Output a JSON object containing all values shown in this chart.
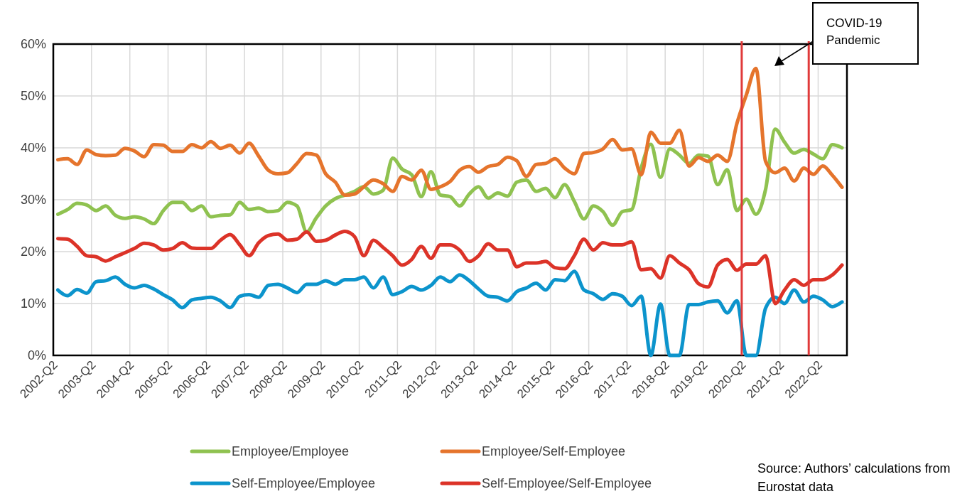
{
  "chart_data": {
    "type": "line",
    "x": [
      "2002-05-15",
      "2002-08-15",
      "2002-11-15",
      "2003-02-15",
      "2003-05-15",
      "2003-08-15",
      "2003-11-15",
      "2004-02-15",
      "2004-05-15",
      "2004-08-15",
      "2004-11-15",
      "2005-02-15",
      "2005-05-15",
      "2005-08-15",
      "2005-11-15",
      "2006-02-15",
      "2006-05-15",
      "2006-08-15",
      "2006-11-15",
      "2007-02-15",
      "2007-05-15",
      "2007-08-15",
      "2007-11-15",
      "2008-02-15",
      "2008-05-15",
      "2008-08-15",
      "2008-11-15",
      "2009-02-15",
      "2009-05-15",
      "2009-08-15",
      "2009-11-15",
      "2010-02-15",
      "2010-05-15",
      "2010-08-15",
      "2010-11-15",
      "2011-02-15",
      "2011-05-15",
      "2011-08-15",
      "2011-11-15",
      "2012-02-15",
      "2012-05-15",
      "2012-08-15",
      "2012-11-15",
      "2013-02-15",
      "2013-05-15",
      "2013-08-15",
      "2013-11-15",
      "2014-02-15",
      "2014-05-15",
      "2014-08-15",
      "2014-11-15",
      "2015-02-15",
      "2015-05-15",
      "2015-08-15",
      "2015-11-15",
      "2016-02-15",
      "2016-05-15",
      "2016-08-15",
      "2016-11-15",
      "2017-02-15",
      "2017-05-15",
      "2017-08-15",
      "2017-11-15",
      "2018-02-15",
      "2018-05-15",
      "2018-08-15",
      "2018-11-15",
      "2019-02-15",
      "2019-05-15",
      "2019-08-15",
      "2019-11-15",
      "2020-02-15",
      "2020-05-15",
      "2020-08-15",
      "2020-11-15",
      "2021-02-15",
      "2021-05-15",
      "2021-08-15",
      "2021-11-15",
      "2022-02-15",
      "2022-05-15",
      "2022-08-15",
      "2022-11-15"
    ],
    "xlim": [
      "2002-04-01",
      "2023-01-01"
    ],
    "xticks": [
      {
        "value": "2002-04-01",
        "label": "2002-Q2"
      },
      {
        "value": "2003-04-01",
        "label": "2003-Q2"
      },
      {
        "value": "2004-04-01",
        "label": "2004-Q2"
      },
      {
        "value": "2005-04-01",
        "label": "2005-Q2"
      },
      {
        "value": "2006-04-01",
        "label": "2006-Q2"
      },
      {
        "value": "2007-04-01",
        "label": "2007-Q2"
      },
      {
        "value": "2008-04-01",
        "label": "2008-Q2"
      },
      {
        "value": "2009-04-01",
        "label": "2009-Q2"
      },
      {
        "value": "2010-04-01",
        "label": "2010-Q2"
      },
      {
        "value": "2011-04-01",
        "label": "2011-Q2"
      },
      {
        "value": "2012-04-01",
        "label": "2012-Q2"
      },
      {
        "value": "2013-04-01",
        "label": "2013-Q2"
      },
      {
        "value": "2014-04-01",
        "label": "2014-Q2"
      },
      {
        "value": "2015-04-01",
        "label": "2015-Q2"
      },
      {
        "value": "2016-04-01",
        "label": "2016-Q2"
      },
      {
        "value": "2017-04-01",
        "label": "2017-Q2"
      },
      {
        "value": "2018-04-01",
        "label": "2018-Q2"
      },
      {
        "value": "2019-04-01",
        "label": "2019-Q2"
      },
      {
        "value": "2020-04-01",
        "label": "2020-Q2"
      },
      {
        "value": "2021-04-01",
        "label": "2021-Q2"
      },
      {
        "value": "2022-04-01",
        "label": "2022-Q2"
      }
    ],
    "ylim": [
      0,
      60
    ],
    "yticks": [
      {
        "value": 0,
        "label": "0%"
      },
      {
        "value": 10,
        "label": "10%"
      },
      {
        "value": 20,
        "label": "20%"
      },
      {
        "value": 30,
        "label": "30%"
      },
      {
        "value": 40,
        "label": "40%"
      },
      {
        "value": 50,
        "label": "50%"
      },
      {
        "value": 60,
        "label": "60%"
      }
    ],
    "grid": true,
    "legend": "bottom",
    "line_style": "solid",
    "ref_lines": [
      {
        "axis": "x",
        "value": "2020-04",
        "color": "#e03a3a"
      },
      {
        "axis": "x",
        "value": "2022-01",
        "color": "#e03a3a"
      }
    ],
    "series": [
      {
        "name": "Employee/Employee",
        "color": "#8fc250",
        "values": [
          27.2,
          28.1,
          29.3,
          29.0,
          27.9,
          28.8,
          27.0,
          26.4,
          26.7,
          26.3,
          25.4,
          27.9,
          29.5,
          29.5,
          27.9,
          28.8,
          26.7,
          27.0,
          27.1,
          29.5,
          28.1,
          28.4,
          27.7,
          27.9,
          29.5,
          28.8,
          23.8,
          26.5,
          28.8,
          30.2,
          30.9,
          31.6,
          32.5,
          31.1,
          31.8,
          38.0,
          35.9,
          34.8,
          30.6,
          35.4,
          30.9,
          30.6,
          28.8,
          31.1,
          32.5,
          30.3,
          31.3,
          30.7,
          33.4,
          33.8,
          31.6,
          32.2,
          30.4,
          32.9,
          29.7,
          26.3,
          28.8,
          27.7,
          25.1,
          27.7,
          28.1,
          36.1,
          40.7,
          34.3,
          39.8,
          38.6,
          37.0,
          38.6,
          38.4,
          32.9,
          35.8,
          27.9,
          30.1,
          27.2,
          32.0,
          43.6,
          41.1,
          39.0,
          39.7,
          38.8,
          37.9,
          40.6,
          40.0
        ]
      },
      {
        "name": "Employee/Self-Employee",
        "color": "#e5742c",
        "values": [
          37.7,
          37.9,
          36.8,
          39.6,
          38.7,
          38.5,
          38.6,
          39.9,
          39.4,
          38.3,
          40.6,
          40.5,
          39.3,
          39.3,
          40.6,
          40.0,
          41.2,
          39.9,
          40.5,
          39.0,
          40.9,
          38.4,
          35.7,
          35.0,
          35.2,
          37.0,
          38.9,
          38.6,
          35.0,
          33.4,
          30.9,
          31.1,
          32.5,
          33.8,
          33.1,
          31.6,
          34.5,
          33.8,
          35.7,
          32.0,
          32.5,
          33.5,
          35.7,
          36.4,
          35.3,
          36.4,
          36.8,
          38.2,
          37.5,
          34.5,
          36.8,
          37.0,
          37.9,
          36.1,
          35.0,
          38.9,
          39.1,
          39.8,
          41.6,
          39.6,
          39.8,
          34.8,
          43.0,
          40.9,
          40.9,
          43.4,
          36.5,
          38.1,
          37.4,
          38.6,
          37.4,
          44.7,
          50.2,
          55.3,
          37.4,
          35.2,
          36.1,
          33.6,
          36.1,
          34.9,
          36.5,
          34.7,
          32.4
        ]
      },
      {
        "name": "Self-Employee/Employee",
        "color": "#0c94cc",
        "values": [
          12.6,
          11.5,
          12.7,
          12.0,
          14.2,
          14.4,
          15.1,
          13.7,
          13.0,
          13.5,
          12.8,
          11.7,
          10.7,
          9.2,
          10.7,
          11.0,
          11.2,
          10.5,
          9.2,
          11.4,
          11.7,
          11.2,
          13.5,
          13.7,
          13.0,
          12.1,
          13.7,
          13.7,
          14.4,
          13.7,
          14.6,
          14.6,
          15.1,
          13.0,
          15.1,
          11.7,
          12.3,
          13.3,
          12.6,
          13.5,
          15.1,
          14.2,
          15.5,
          14.4,
          12.8,
          11.4,
          11.2,
          10.5,
          12.3,
          13.0,
          13.9,
          12.6,
          14.6,
          14.4,
          16.2,
          12.6,
          11.9,
          10.8,
          11.9,
          11.4,
          9.6,
          11.4,
          0,
          9.9,
          0,
          0,
          9.8,
          9.8,
          10.3,
          10.5,
          8.2,
          10.5,
          0,
          0,
          9.1,
          11.2,
          10.0,
          12.6,
          10.3,
          11.4,
          10.7,
          9.4,
          10.3
        ]
      },
      {
        "name": "Self-Employee/Self-Employee",
        "color": "#dc3328",
        "values": [
          22.5,
          22.4,
          21.0,
          19.2,
          19.0,
          18.2,
          19.0,
          19.8,
          20.6,
          21.6,
          21.3,
          20.3,
          20.6,
          21.7,
          20.7,
          20.6,
          20.6,
          22.2,
          23.3,
          21.3,
          19.2,
          21.7,
          23.1,
          23.4,
          22.2,
          22.4,
          23.8,
          22.0,
          22.2,
          23.2,
          23.9,
          22.9,
          19.2,
          22.2,
          20.8,
          19.2,
          17.4,
          18.5,
          21.0,
          18.7,
          21.3,
          21.3,
          20.3,
          18.1,
          19.2,
          21.5,
          20.3,
          20.3,
          17.1,
          17.8,
          17.8,
          18.1,
          16.9,
          16.7,
          19.2,
          22.4,
          20.3,
          21.7,
          21.3,
          21.3,
          21.9,
          16.5,
          16.7,
          14.9,
          19.2,
          17.8,
          16.5,
          13.8,
          13.2,
          17.4,
          18.5,
          16.4,
          17.6,
          17.6,
          19.2,
          10.0,
          12.6,
          14.6,
          13.5,
          14.6,
          14.6,
          15.5,
          17.4
        ]
      }
    ],
    "annotations": [
      "COVID-19 Pandemic",
      "Source: Authors’ calculations from Eurostat data"
    ]
  }
}
